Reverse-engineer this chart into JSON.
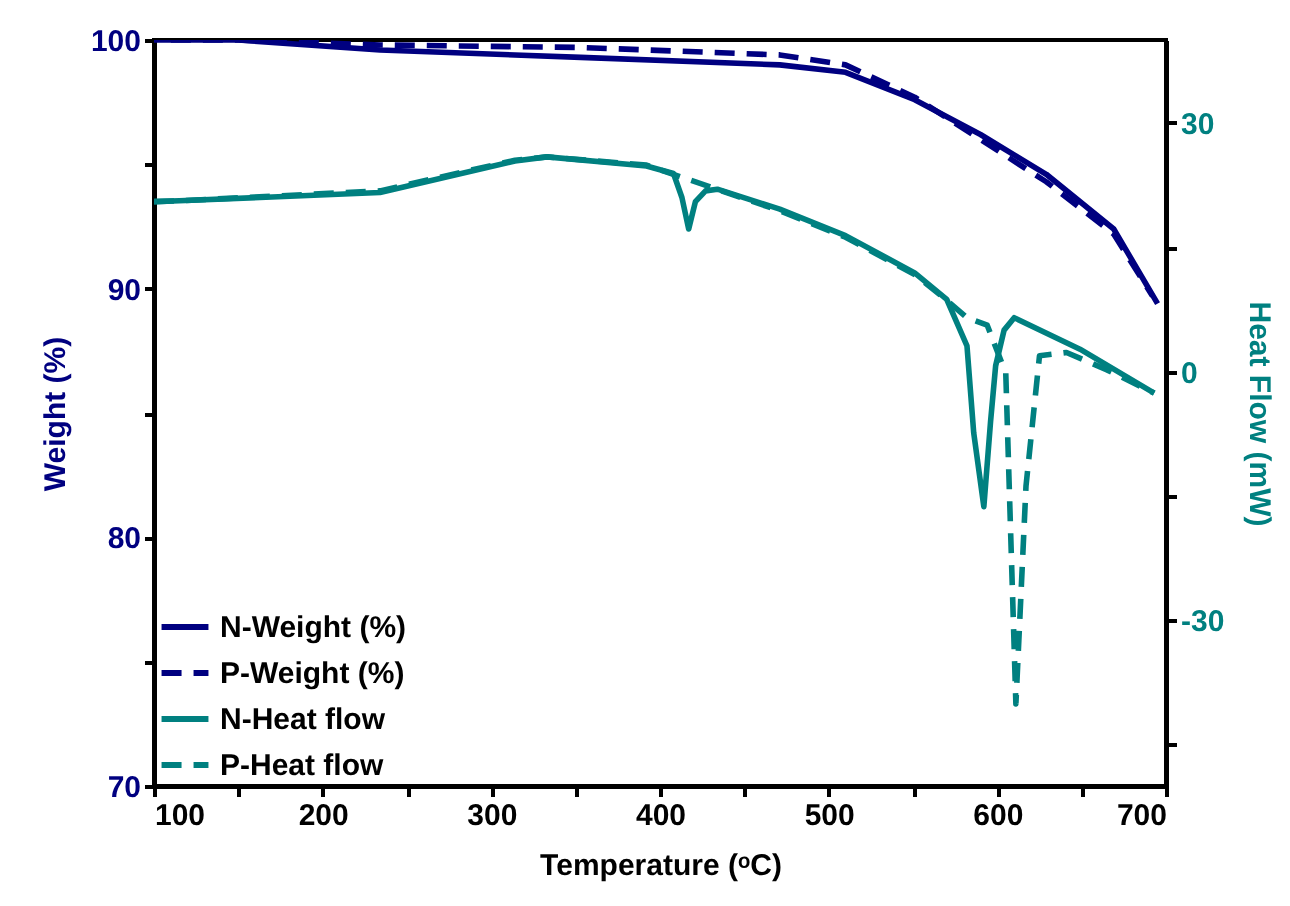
{
  "chart_data": {
    "type": "line",
    "xlabel": "Temperature (ᵒC)",
    "ylabel": "Weight (%)",
    "y2label": "Heat Flow (mW)",
    "xlim": [
      100,
      700
    ],
    "xticks": [
      100,
      {
        "value": 150,
        "label": null
      },
      200,
      {
        "value": 250,
        "label": null
      },
      300,
      {
        "value": 350,
        "label": null
      },
      400,
      {
        "value": 450,
        "label": null
      },
      500,
      {
        "value": 550,
        "label": null
      },
      600,
      {
        "value": 650,
        "label": null
      },
      700
    ],
    "ylim": [
      70,
      100
    ],
    "yticks": [
      70,
      {
        "value": 75,
        "label": null
      },
      80,
      {
        "value": 85,
        "label": null
      },
      90,
      {
        "value": 95,
        "label": null
      },
      100
    ],
    "y2lim": [
      -50,
      40
    ],
    "y2ticks": [
      {
        "value": -45,
        "label": null
      },
      -30,
      {
        "value": -15,
        "label": null
      },
      0,
      {
        "value": 15,
        "label": null
      },
      30
    ],
    "grid": false,
    "legend": "bottom left",
    "marker": "none",
    "series": [
      {
        "name": "N-Weight (%)",
        "color": "#000080",
        "line_style": "solid",
        "x": [
          100,
          150,
          234,
          353,
          471,
          510,
          551,
          590,
          629,
          669,
          695
        ],
        "values": [
          100,
          100,
          99.6,
          99.3,
          99.0,
          98.7,
          97.6,
          96.2,
          94.6,
          92.4,
          89.4
        ]
      },
      {
        "name": "P-Weight (%)",
        "color": "#000080",
        "line_style": "dashed",
        "x": [
          110,
          150,
          234,
          353,
          471,
          510,
          551,
          590,
          629,
          669,
          692
        ],
        "values": [
          100,
          100,
          99.8,
          99.7,
          99.4,
          99.0,
          97.7,
          96.0,
          94.3,
          92.2,
          89.7
        ]
      },
      {
        "name": "N-Heat flow",
        "color": "#008080",
        "line_style": "solid",
        "axis": "y2",
        "x": [
          100,
          115,
          234,
          314,
          333,
          392,
          408,
          413,
          417,
          421,
          427,
          434,
          471,
          510,
          551,
          570,
          582,
          586,
          592,
          596,
          599,
          604,
          610,
          649,
          693
        ],
        "values": [
          20.5,
          20.6,
          21.6,
          25.4,
          25.9,
          24.8,
          23.9,
          21.0,
          17.2,
          20.5,
          21.8,
          22.0,
          19.6,
          16.4,
          11.9,
          8.7,
          3.1,
          -7.4,
          -16.3,
          -6.0,
          0.7,
          5.0,
          6.5,
          2.7,
          -2.6
        ]
      },
      {
        "name": "P-Heat flow",
        "color": "#008080",
        "line_style": "dashed",
        "axis": "y2",
        "x": [
          100,
          115,
          234,
          314,
          333,
          392,
          471,
          510,
          551,
          570,
          582,
          594,
          605,
          611,
          617,
          625,
          641,
          665,
          693
        ],
        "values": [
          20.5,
          20.6,
          21.8,
          25.5,
          25.9,
          24.9,
          19.4,
          16.2,
          11.7,
          8.6,
          6.5,
          5.6,
          -0.2,
          -40.1,
          -13.8,
          1.9,
          2.3,
          0.2,
          -2.6
        ]
      }
    ]
  }
}
